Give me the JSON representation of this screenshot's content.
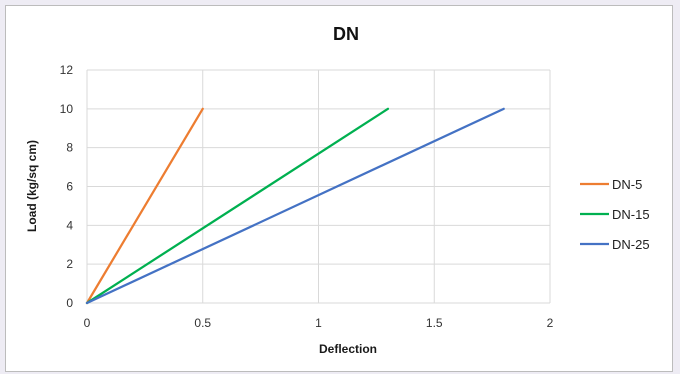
{
  "chart_data": {
    "type": "line",
    "title": "DN",
    "xlabel": "Deflection",
    "ylabel": "Load (kg/sq cm)",
    "xlim": [
      0,
      2
    ],
    "ylim": [
      0,
      12
    ],
    "x_ticks": [
      "0",
      "0.5",
      "1",
      "1.5",
      "2"
    ],
    "y_ticks": [
      "0",
      "2",
      "4",
      "6",
      "8",
      "10",
      "12"
    ],
    "grid": true,
    "legend_position": "right",
    "series": [
      {
        "name": "DN-5",
        "color": "#ed7d31",
        "x": [
          0,
          0.5
        ],
        "y": [
          0,
          10
        ]
      },
      {
        "name": "DN-15",
        "color": "#00b050",
        "x": [
          0,
          1.3
        ],
        "y": [
          0,
          10
        ]
      },
      {
        "name": "DN-25",
        "color": "#4472c4",
        "x": [
          0,
          1.8
        ],
        "y": [
          0,
          10
        ]
      }
    ]
  }
}
